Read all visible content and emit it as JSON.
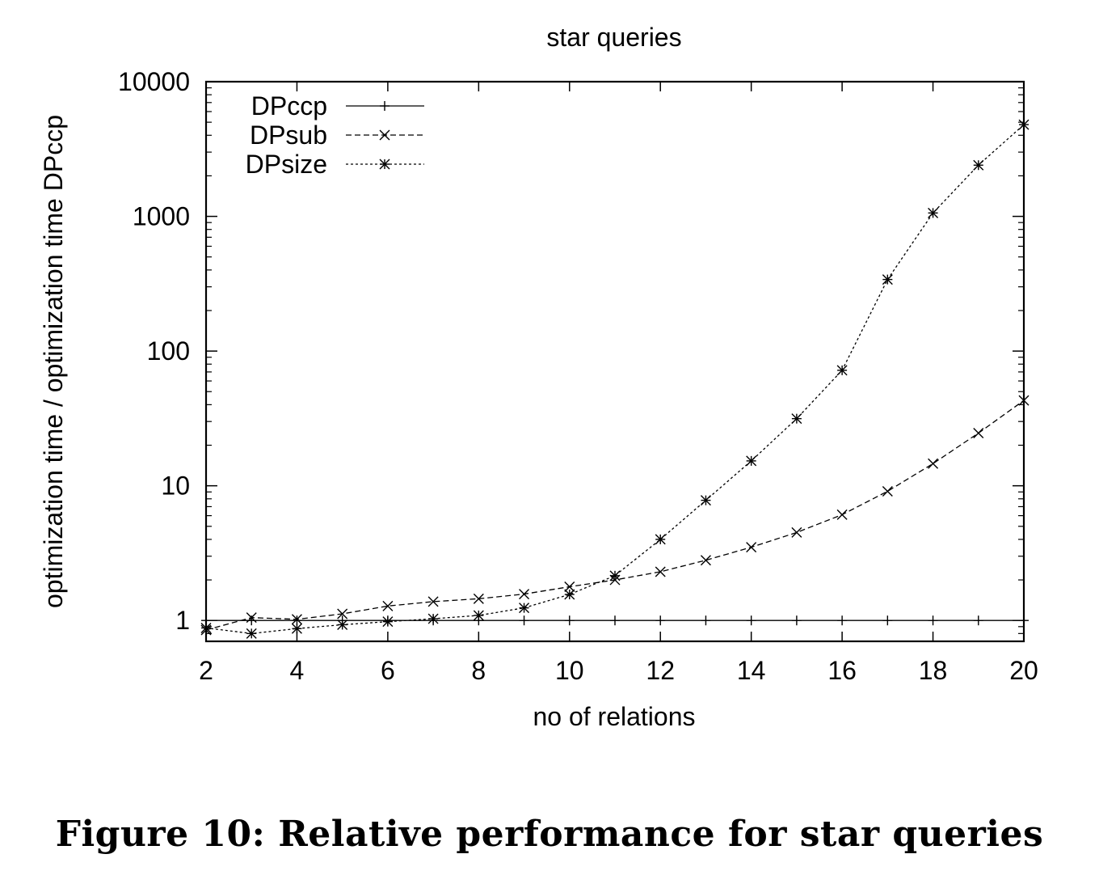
{
  "caption": "Figure 10: Relative performance for star queries",
  "chart_data": {
    "type": "line",
    "title": "star queries",
    "xlabel": "no of relations",
    "ylabel": "optimization time / optimization time DPccp",
    "xlim": [
      2,
      20
    ],
    "ylim": [
      0.7,
      10000
    ],
    "yscale": "log",
    "grid": false,
    "legend_position": "top-left",
    "x_ticks": [
      2,
      4,
      6,
      8,
      10,
      12,
      14,
      16,
      18,
      20
    ],
    "y_ticks": [
      1,
      10,
      100,
      1000,
      10000
    ],
    "x": [
      2,
      3,
      4,
      5,
      6,
      7,
      8,
      9,
      10,
      11,
      12,
      13,
      14,
      15,
      16,
      17,
      18,
      19,
      20
    ],
    "series": [
      {
        "name": "DPccp",
        "marker": "plus",
        "dash": "solid",
        "values": [
          1,
          1,
          1,
          1,
          1,
          1,
          1,
          1,
          1,
          1,
          1,
          1,
          1,
          1,
          1,
          1,
          1,
          1,
          1
        ]
      },
      {
        "name": "DPsub",
        "marker": "x",
        "dash": "dashed",
        "values": [
          0.85,
          1.05,
          1.02,
          1.12,
          1.28,
          1.38,
          1.45,
          1.57,
          1.78,
          2.0,
          2.3,
          2.8,
          3.5,
          4.5,
          6.1,
          9.1,
          14.6,
          24.6,
          43
        ]
      },
      {
        "name": "DPsize",
        "marker": "star",
        "dash": "dotted",
        "values": [
          0.88,
          0.8,
          0.87,
          0.93,
          0.98,
          1.03,
          1.09,
          1.24,
          1.56,
          2.15,
          4.0,
          7.8,
          15.3,
          31.5,
          72,
          340,
          1060,
          2400,
          4800
        ]
      }
    ]
  }
}
